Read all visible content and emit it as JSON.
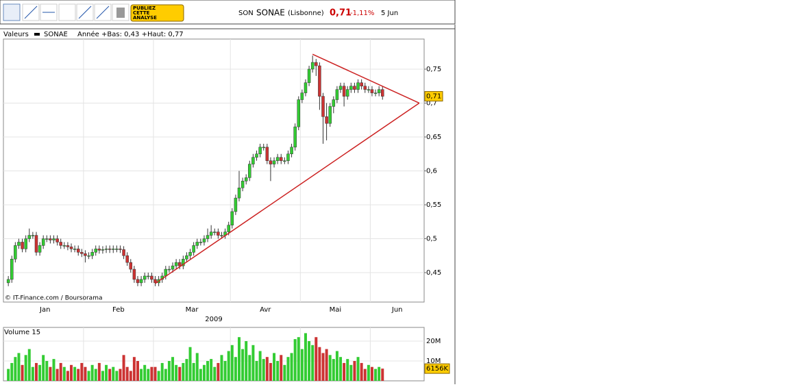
{
  "toolbar": {
    "button": [
      "PUBLIEZ",
      "CETTE",
      "ANALYSE"
    ]
  },
  "header": {
    "code": "SON",
    "name": "SONAE",
    "market": "(Lisbonne)",
    "price": "0,71",
    "change": "-1,11%",
    "date": "5 Jun"
  },
  "chart_data": [
    {
      "type": "candlestick",
      "legend_title": "Valeurs",
      "series_name": "SONAE",
      "legend_note": "Année +Bas: 0,43 +Haut: 0,77",
      "source": "© IT-Finance.com / Boursorama",
      "months": [
        "Jan",
        "Feb",
        "Mar",
        "Avr",
        "Mai",
        "Jun"
      ],
      "month_starts": [
        0,
        22,
        42,
        64,
        84,
        104
      ],
      "year": "2009",
      "up_color": "#33cc33",
      "down_color": "#cc3333",
      "grid": true,
      "xlim": [
        -1.4,
        118.9
      ],
      "ylim": [
        0.4066,
        0.7944
      ],
      "yticks": [
        {
          "value": 0.45,
          "label": "0,45"
        },
        {
          "value": 0.5,
          "label": "0,5"
        },
        {
          "value": 0.55,
          "label": "0,55"
        },
        {
          "value": 0.6,
          "label": "0,6"
        },
        {
          "value": 0.65,
          "label": "0,65"
        },
        {
          "value": 0.7,
          "label": "0,7"
        },
        {
          "value": 0.75,
          "label": "0,75"
        }
      ],
      "last": {
        "value": 0.71,
        "label": "0,71"
      },
      "trendlines": [
        {
          "from": [
            87,
            0.772
          ],
          "to": [
            117.5,
            0.7
          ],
          "color": "#cc2222"
        },
        {
          "from": [
            42,
            0.434
          ],
          "to": [
            117.5,
            0.7
          ],
          "color": "#cc2222"
        }
      ],
      "ohlc": [
        [
          0.435,
          0.445,
          0.43,
          0.44
        ],
        [
          0.44,
          0.475,
          0.435,
          0.47
        ],
        [
          0.47,
          0.495,
          0.465,
          0.49
        ],
        [
          0.49,
          0.5,
          0.485,
          0.495
        ],
        [
          0.495,
          0.5,
          0.48,
          0.485
        ],
        [
          0.485,
          0.505,
          0.48,
          0.5
        ],
        [
          0.5,
          0.515,
          0.495,
          0.505
        ],
        [
          0.505,
          0.51,
          0.5,
          0.505
        ],
        [
          0.505,
          0.51,
          0.475,
          0.48
        ],
        [
          0.48,
          0.495,
          0.475,
          0.49
        ],
        [
          0.49,
          0.505,
          0.485,
          0.5
        ],
        [
          0.5,
          0.505,
          0.495,
          0.5
        ],
        [
          0.5,
          0.505,
          0.493,
          0.498
        ],
        [
          0.498,
          0.505,
          0.493,
          0.5
        ],
        [
          0.5,
          0.505,
          0.49,
          0.495
        ],
        [
          0.495,
          0.5,
          0.485,
          0.49
        ],
        [
          0.49,
          0.495,
          0.485,
          0.49
        ],
        [
          0.49,
          0.495,
          0.483,
          0.488
        ],
        [
          0.488,
          0.493,
          0.48,
          0.485
        ],
        [
          0.485,
          0.49,
          0.48,
          0.485
        ],
        [
          0.485,
          0.49,
          0.475,
          0.48
        ],
        [
          0.48,
          0.485,
          0.473,
          0.478
        ],
        [
          0.478,
          0.483,
          0.465,
          0.475
        ],
        [
          0.475,
          0.48,
          0.47,
          0.475
        ],
        [
          0.475,
          0.485,
          0.47,
          0.48
        ],
        [
          0.48,
          0.49,
          0.475,
          0.485
        ],
        [
          0.485,
          0.49,
          0.478,
          0.483
        ],
        [
          0.483,
          0.489,
          0.478,
          0.484
        ],
        [
          0.484,
          0.49,
          0.479,
          0.485
        ],
        [
          0.485,
          0.49,
          0.479,
          0.484
        ],
        [
          0.484,
          0.49,
          0.479,
          0.485
        ],
        [
          0.485,
          0.49,
          0.48,
          0.485
        ],
        [
          0.485,
          0.49,
          0.479,
          0.484
        ],
        [
          0.484,
          0.489,
          0.47,
          0.475
        ],
        [
          0.475,
          0.48,
          0.46,
          0.465
        ],
        [
          0.465,
          0.47,
          0.45,
          0.455
        ],
        [
          0.455,
          0.46,
          0.435,
          0.44
        ],
        [
          0.44,
          0.445,
          0.43,
          0.435
        ],
        [
          0.435,
          0.445,
          0.43,
          0.44
        ],
        [
          0.44,
          0.45,
          0.435,
          0.445
        ],
        [
          0.445,
          0.45,
          0.44,
          0.445
        ],
        [
          0.445,
          0.45,
          0.435,
          0.44
        ],
        [
          0.44,
          0.445,
          0.43,
          0.435
        ],
        [
          0.435,
          0.445,
          0.43,
          0.44
        ],
        [
          0.44,
          0.45,
          0.435,
          0.445
        ],
        [
          0.445,
          0.46,
          0.44,
          0.455
        ],
        [
          0.455,
          0.46,
          0.45,
          0.455
        ],
        [
          0.455,
          0.465,
          0.45,
          0.46
        ],
        [
          0.46,
          0.47,
          0.455,
          0.465
        ],
        [
          0.465,
          0.47,
          0.455,
          0.46
        ],
        [
          0.46,
          0.475,
          0.455,
          0.47
        ],
        [
          0.47,
          0.48,
          0.465,
          0.475
        ],
        [
          0.475,
          0.485,
          0.47,
          0.48
        ],
        [
          0.48,
          0.495,
          0.475,
          0.49
        ],
        [
          0.49,
          0.5,
          0.485,
          0.495
        ],
        [
          0.495,
          0.5,
          0.49,
          0.495
        ],
        [
          0.495,
          0.505,
          0.49,
          0.5
        ],
        [
          0.5,
          0.515,
          0.495,
          0.505
        ],
        [
          0.505,
          0.52,
          0.5,
          0.51
        ],
        [
          0.51,
          0.515,
          0.505,
          0.51
        ],
        [
          0.51,
          0.515,
          0.5,
          0.505
        ],
        [
          0.505,
          0.51,
          0.5,
          0.505
        ],
        [
          0.505,
          0.515,
          0.5,
          0.51
        ],
        [
          0.51,
          0.525,
          0.505,
          0.52
        ],
        [
          0.52,
          0.545,
          0.515,
          0.54
        ],
        [
          0.54,
          0.565,
          0.535,
          0.56
        ],
        [
          0.56,
          0.6,
          0.555,
          0.575
        ],
        [
          0.575,
          0.59,
          0.57,
          0.585
        ],
        [
          0.585,
          0.595,
          0.58,
          0.59
        ],
        [
          0.59,
          0.615,
          0.585,
          0.61
        ],
        [
          0.61,
          0.625,
          0.605,
          0.62
        ],
        [
          0.62,
          0.63,
          0.615,
          0.625
        ],
        [
          0.625,
          0.64,
          0.62,
          0.635
        ],
        [
          0.635,
          0.64,
          0.63,
          0.635
        ],
        [
          0.635,
          0.64,
          0.61,
          0.615
        ],
        [
          0.615,
          0.62,
          0.585,
          0.61
        ],
        [
          0.61,
          0.62,
          0.605,
          0.615
        ],
        [
          0.615,
          0.625,
          0.61,
          0.62
        ],
        [
          0.62,
          0.625,
          0.61,
          0.615
        ],
        [
          0.615,
          0.62,
          0.61,
          0.615
        ],
        [
          0.615,
          0.63,
          0.61,
          0.625
        ],
        [
          0.625,
          0.64,
          0.62,
          0.635
        ],
        [
          0.635,
          0.67,
          0.63,
          0.665
        ],
        [
          0.665,
          0.71,
          0.66,
          0.705
        ],
        [
          0.705,
          0.72,
          0.7,
          0.715
        ],
        [
          0.715,
          0.735,
          0.71,
          0.73
        ],
        [
          0.73,
          0.755,
          0.725,
          0.75
        ],
        [
          0.75,
          0.77,
          0.745,
          0.76
        ],
        [
          0.76,
          0.765,
          0.74,
          0.755
        ],
        [
          0.755,
          0.76,
          0.69,
          0.71
        ],
        [
          0.71,
          0.715,
          0.64,
          0.68
        ],
        [
          0.68,
          0.7,
          0.645,
          0.67
        ],
        [
          0.67,
          0.7,
          0.665,
          0.695
        ],
        [
          0.695,
          0.71,
          0.685,
          0.705
        ],
        [
          0.705,
          0.725,
          0.7,
          0.72
        ],
        [
          0.72,
          0.73,
          0.715,
          0.725
        ],
        [
          0.725,
          0.73,
          0.695,
          0.71
        ],
        [
          0.71,
          0.725,
          0.705,
          0.72
        ],
        [
          0.72,
          0.73,
          0.715,
          0.725
        ],
        [
          0.725,
          0.73,
          0.715,
          0.72
        ],
        [
          0.72,
          0.735,
          0.715,
          0.73
        ],
        [
          0.73,
          0.735,
          0.72,
          0.725
        ],
        [
          0.725,
          0.73,
          0.715,
          0.72
        ],
        [
          0.72,
          0.725,
          0.715,
          0.72
        ],
        [
          0.72,
          0.725,
          0.71,
          0.715
        ],
        [
          0.715,
          0.72,
          0.71,
          0.715
        ],
        [
          0.715,
          0.725,
          0.71,
          0.72
        ],
        [
          0.72,
          0.725,
          0.705,
          0.71
        ]
      ]
    },
    {
      "type": "bar",
      "title": "Volume 15",
      "ylim": [
        0,
        26.9
      ],
      "yticks": [
        {
          "value": 10,
          "label": "10M"
        },
        {
          "value": 20,
          "label": "20M"
        }
      ],
      "values": [
        6,
        9,
        12,
        14,
        8,
        13,
        16,
        7,
        9,
        8,
        13,
        10,
        7,
        11,
        6,
        9,
        7,
        5,
        8,
        7,
        6,
        9,
        7,
        5,
        8,
        6,
        9,
        5,
        8,
        6,
        7,
        5,
        6,
        13,
        7,
        5,
        12,
        10,
        6,
        8,
        6,
        7,
        7,
        5,
        9,
        6,
        10,
        12,
        8,
        7,
        9,
        11,
        17,
        9,
        14,
        6,
        8,
        10,
        11,
        7,
        9,
        13,
        10,
        15,
        18,
        12,
        22,
        16,
        20,
        13,
        18,
        10,
        15,
        11,
        12,
        9,
        14,
        10,
        13,
        8,
        12,
        14,
        21,
        22,
        16,
        24,
        20,
        18,
        22,
        17,
        14,
        16,
        13,
        11,
        15,
        12,
        9,
        11,
        8,
        10,
        12,
        9,
        6,
        8,
        7,
        6,
        7,
        6.156
      ],
      "last_label": "6156K"
    }
  ]
}
